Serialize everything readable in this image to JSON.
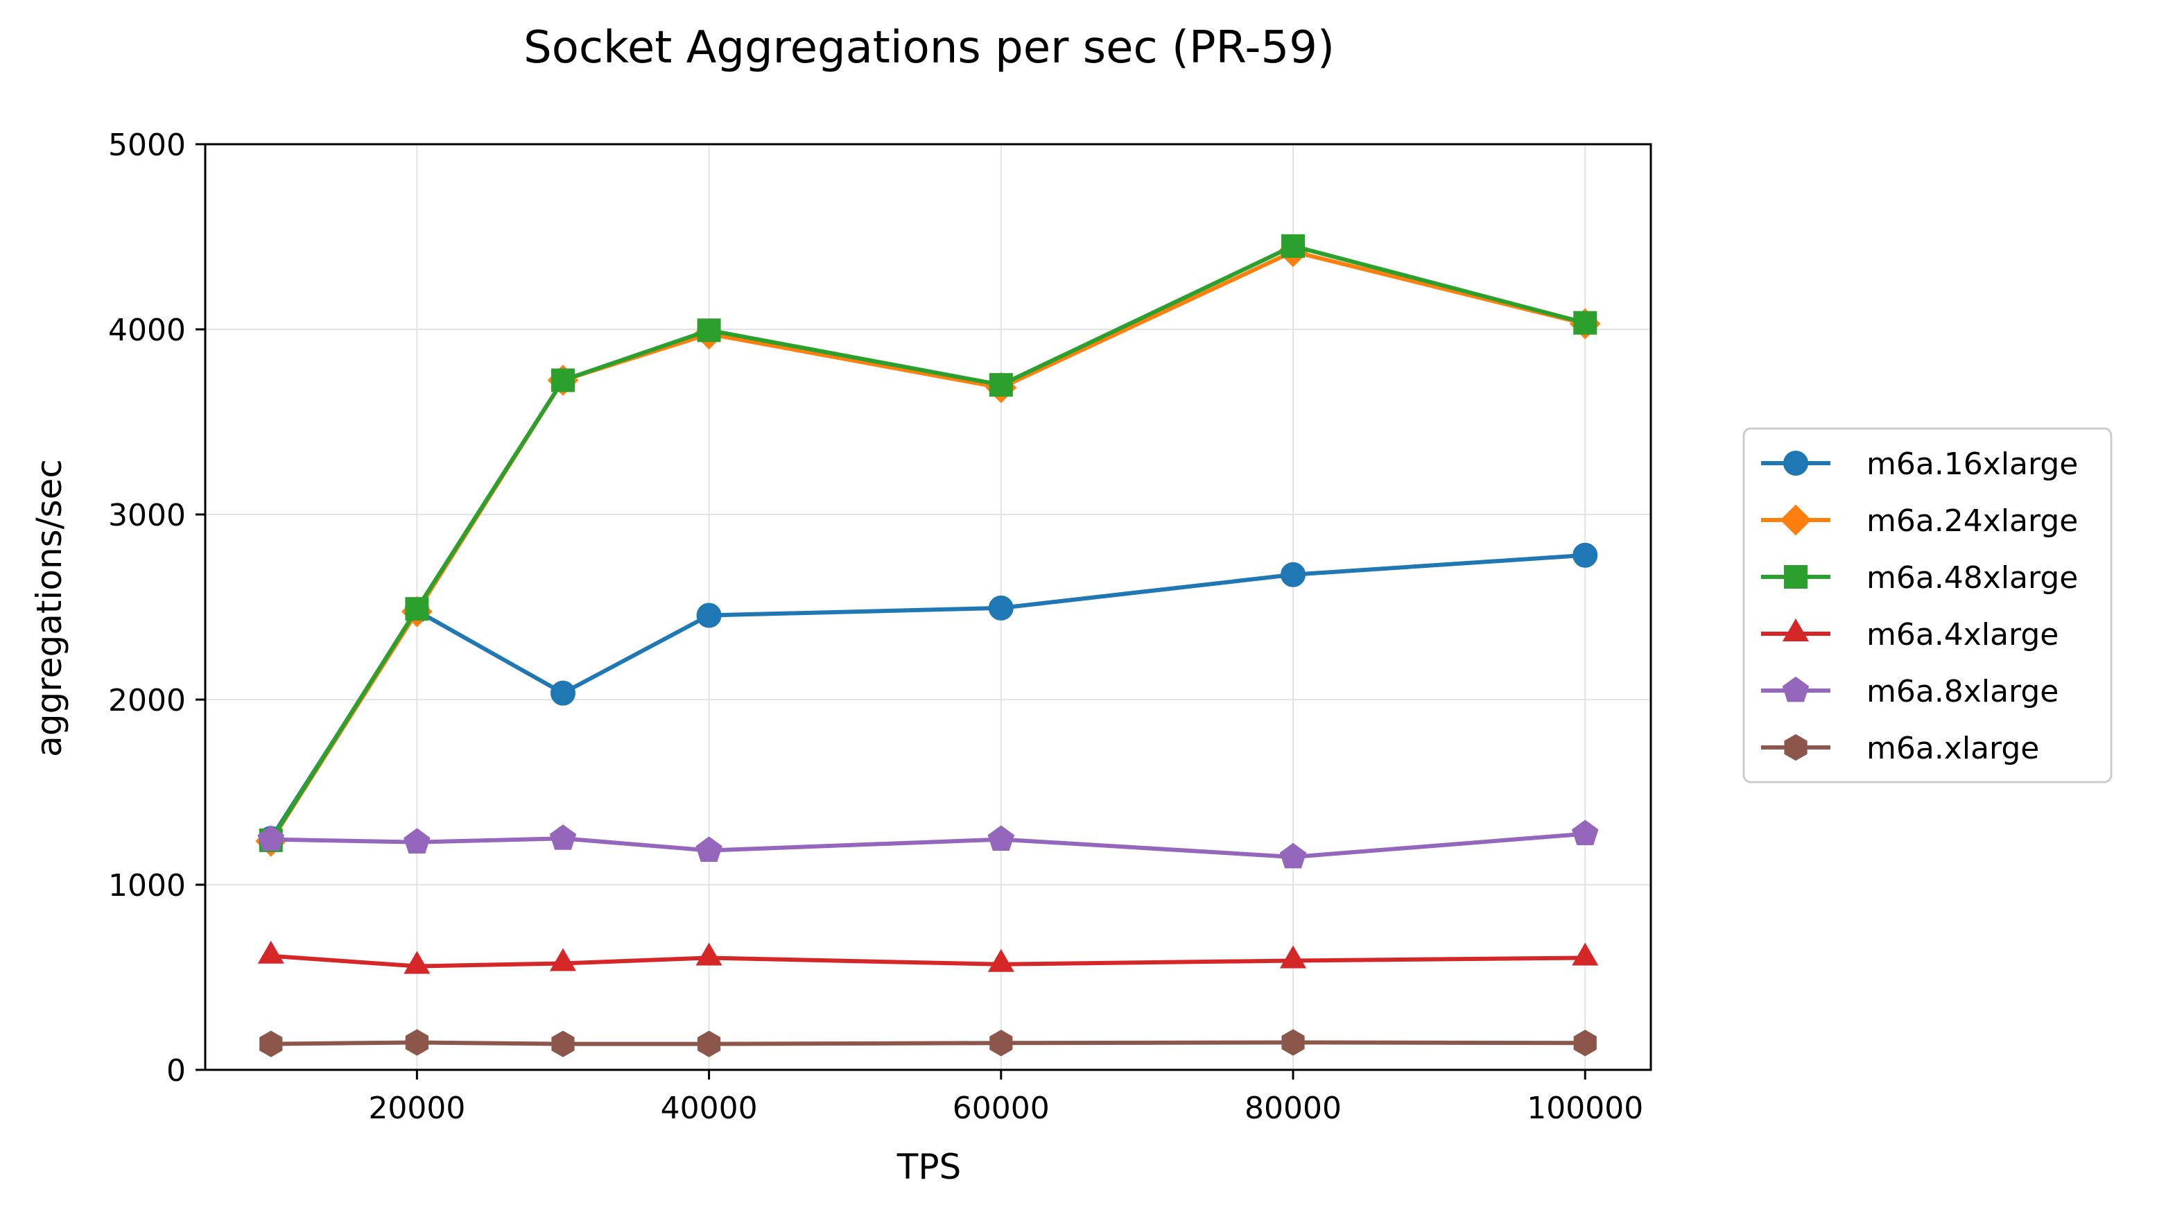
{
  "chart_data": {
    "type": "line",
    "title": "Socket Aggregations per sec (PR-59)",
    "xlabel": "TPS",
    "ylabel": "aggregations/sec",
    "x": [
      10000,
      20000,
      30000,
      40000,
      60000,
      80000,
      100000
    ],
    "xlim": [
      5500,
      104500
    ],
    "ylim": [
      0,
      5000
    ],
    "xticks": [
      20000,
      40000,
      60000,
      80000,
      100000
    ],
    "yticks": [
      0,
      1000,
      2000,
      3000,
      4000,
      5000
    ],
    "grid": true,
    "legend_position": "right-outside",
    "series": [
      {
        "name": "m6a.16xlarge",
        "color": "#1f77b4",
        "marker": "circle",
        "values": [
          1250,
          2480,
          2035,
          2455,
          2495,
          2675,
          2780
        ]
      },
      {
        "name": "m6a.24xlarge",
        "color": "#ff7f0e",
        "marker": "diamond",
        "values": [
          1235,
          2475,
          3725,
          3975,
          3685,
          4420,
          4030
        ]
      },
      {
        "name": "m6a.48xlarge",
        "color": "#2ca02c",
        "marker": "square",
        "values": [
          1240,
          2490,
          3725,
          3995,
          3700,
          4450,
          4035
        ]
      },
      {
        "name": "m6a.4xlarge",
        "color": "#d62728",
        "marker": "triangle",
        "values": [
          615,
          560,
          575,
          605,
          570,
          590,
          605
        ]
      },
      {
        "name": "m6a.8xlarge",
        "color": "#9467bd",
        "marker": "pentagon",
        "values": [
          1245,
          1230,
          1250,
          1185,
          1245,
          1150,
          1275
        ]
      },
      {
        "name": "m6a.xlarge",
        "color": "#8c564b",
        "marker": "hexagon",
        "values": [
          140,
          148,
          140,
          140,
          145,
          148,
          145
        ]
      }
    ]
  }
}
